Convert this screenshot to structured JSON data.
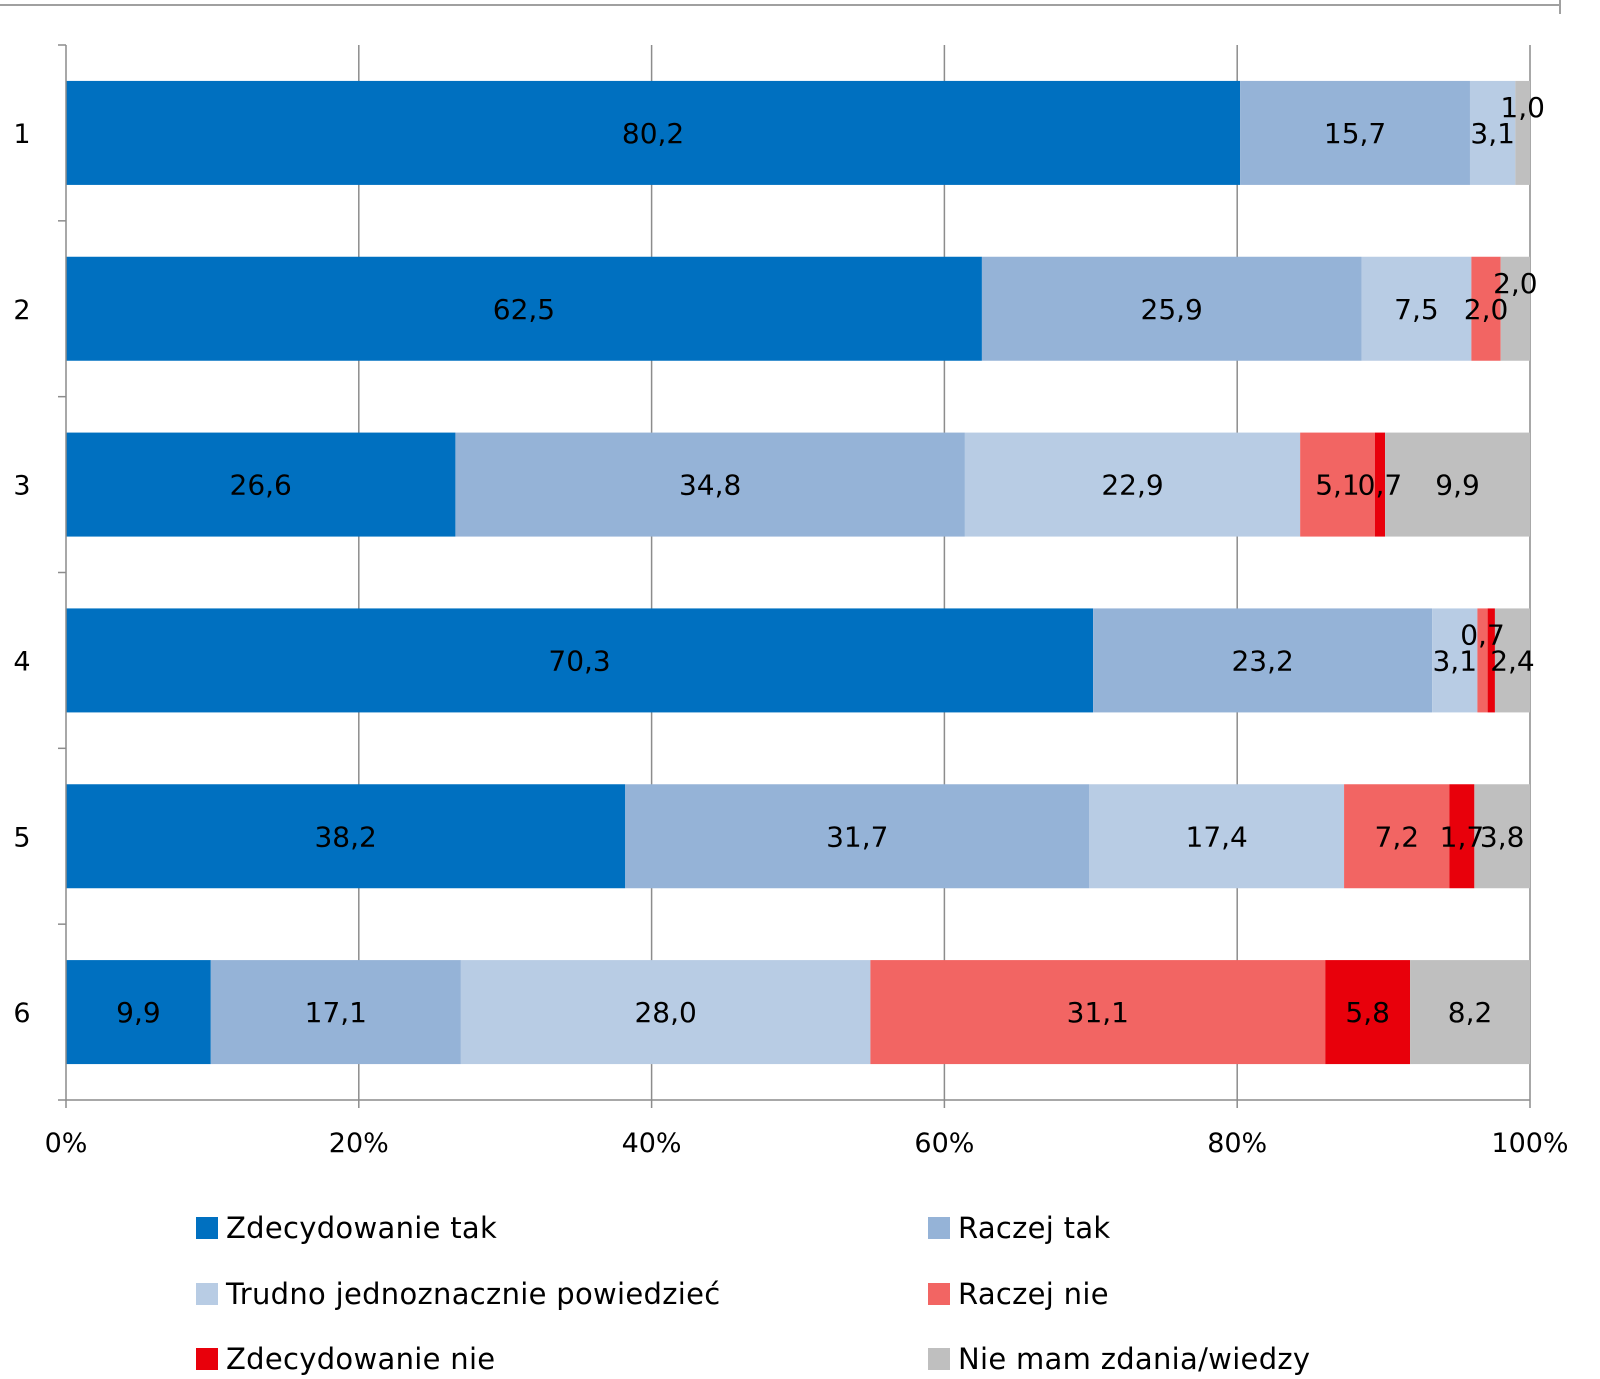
{
  "chart_data": {
    "type": "bar",
    "orientation": "horizontal",
    "stacked": "percent",
    "categories": [
      "1",
      "2",
      "3",
      "4",
      "5",
      "6"
    ],
    "series": [
      {
        "name": "Zdecydowanie tak",
        "color": "#0070C0",
        "values": [
          80.2,
          62.5,
          26.6,
          70.3,
          38.2,
          9.9
        ],
        "labels": [
          "80,2",
          "62,5",
          "26,6",
          "70,3",
          "38,2",
          "9,9"
        ]
      },
      {
        "name": "Raczej tak",
        "color": "#95B3D7",
        "values": [
          15.7,
          25.9,
          34.8,
          23.2,
          31.7,
          17.1
        ],
        "labels": [
          "15,7",
          "25,9",
          "34,8",
          "23,2",
          "31,7",
          "17,1"
        ]
      },
      {
        "name": "Trudno jednoznacznie powiedzieć",
        "color": "#B8CCE4",
        "values": [
          3.1,
          7.5,
          22.9,
          3.1,
          17.4,
          28.0
        ],
        "labels": [
          "3,1",
          "7,5",
          "22,9",
          "3,1",
          "17,4",
          "28,0"
        ]
      },
      {
        "name": "Raczej nie",
        "color": "#F26563",
        "values": [
          0,
          2.0,
          5.1,
          0.7,
          7.2,
          31.1
        ],
        "labels": [
          "",
          "2,0",
          "5,1",
          "0,7",
          "7,2",
          "31,1"
        ]
      },
      {
        "name": "Zdecydowanie nie",
        "color": "#E8000B",
        "values": [
          0,
          0,
          0.7,
          0.5,
          1.7,
          5.8
        ],
        "labels": [
          "",
          "",
          "0,7",
          "",
          "1,7",
          "5,8"
        ]
      },
      {
        "name": "Nie mam zdania/wiedzy",
        "color": "#BFBFBF",
        "values": [
          1.0,
          2.0,
          9.9,
          2.4,
          3.8,
          8.2
        ],
        "labels": [
          "1,0",
          "2,0",
          "9,9",
          "2,4",
          "3,8",
          "8,2"
        ]
      }
    ],
    "xlim": [
      0,
      100
    ],
    "xticks": [
      "0%",
      "20%",
      "40%",
      "60%",
      "80%",
      "100%"
    ],
    "grid": "vertical",
    "legend_position": "bottom"
  }
}
